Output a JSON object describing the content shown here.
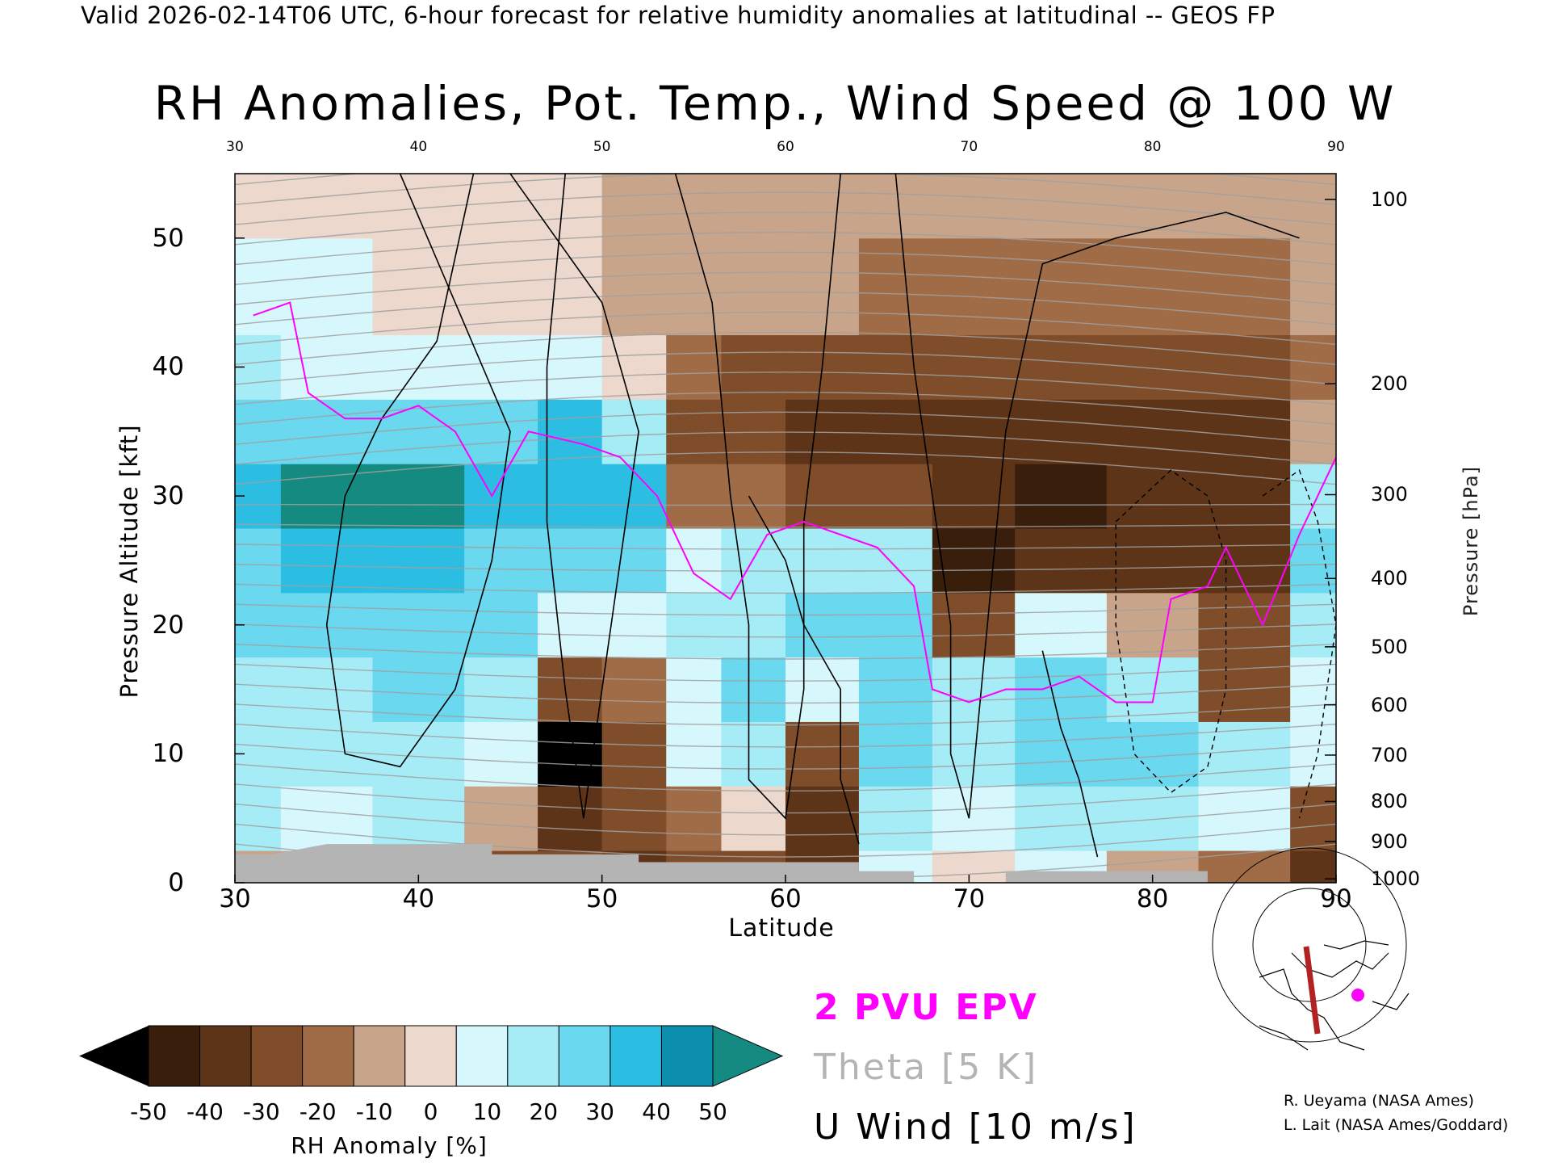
{
  "header": "Valid 2026-02-14T06 UTC, 6-hour forecast for relative humidity anomalies at latitudinal -- GEOS FP",
  "title": "RH Anomalies, Pot. Temp., Wind Speed @ 100 W",
  "chart_data": {
    "type": "heatmap",
    "title": "RH Anomalies, Pot. Temp., Wind Speed @ 100 W",
    "xlabel": "Latitude",
    "ylabel": "Pressure Altitude [kft]",
    "y2label": "Pressure [hPa]",
    "xlim": [
      30,
      90
    ],
    "ylim": [
      0,
      55
    ],
    "x_ticks": [
      30,
      40,
      50,
      60,
      70,
      80,
      90
    ],
    "x_top_ticks": [
      30,
      40,
      50,
      60,
      70,
      80,
      90
    ],
    "y_ticks": [
      0,
      10,
      20,
      30,
      40,
      50
    ],
    "pressure_ticks": [
      {
        "label": "100",
        "kft": 53
      },
      {
        "label": "200",
        "kft": 38.7
      },
      {
        "label": "300",
        "kft": 30.1
      },
      {
        "label": "400",
        "kft": 23.6
      },
      {
        "label": "500",
        "kft": 18.3
      },
      {
        "label": "600",
        "kft": 13.8
      },
      {
        "label": "700",
        "kft": 9.9
      },
      {
        "label": "800",
        "kft": 6.3
      },
      {
        "label": "900",
        "kft": 3.2
      },
      {
        "label": "1000",
        "kft": 0.3
      }
    ],
    "colorbar": {
      "label": "RH Anomaly [%]",
      "ticks": [
        "-50",
        "-40",
        "-30",
        "-20",
        "-10",
        "0",
        "10",
        "20",
        "30",
        "40",
        "50"
      ],
      "colors": [
        "#3a1e0c",
        "#5e3418",
        "#7f4d2a",
        "#a06c48",
        "#c8a48a",
        "#ecd8cc",
        "#d6f7fb",
        "#a6ecf6",
        "#6ad8ee",
        "#2cbee2",
        "#0c8eaf"
      ],
      "under_color": "#000000",
      "over_color": "#148a80"
    },
    "rh_anomaly_columns": [
      {
        "lat": 30,
        "values": [
          -10,
          20,
          25,
          25,
          30,
          35,
          40,
          30,
          20,
          10,
          0
        ]
      },
      {
        "lat": 35,
        "values": [
          -5,
          15,
          20,
          25,
          30,
          40,
          50,
          30,
          15,
          10,
          0
        ]
      },
      {
        "lat": 40,
        "values": [
          -20,
          20,
          25,
          30,
          35,
          40,
          55,
          35,
          15,
          5,
          0
        ]
      },
      {
        "lat": 45,
        "values": [
          -30,
          -10,
          10,
          20,
          30,
          35,
          40,
          30,
          10,
          5,
          0
        ]
      },
      {
        "lat": 48,
        "values": [
          -30,
          -40,
          -60,
          -30,
          10,
          30,
          45,
          40,
          10,
          5,
          0
        ]
      },
      {
        "lat": 52,
        "values": [
          -40,
          -30,
          -25,
          -20,
          15,
          30,
          40,
          20,
          0,
          -5,
          -5
        ]
      },
      {
        "lat": 55,
        "values": [
          -30,
          -20,
          10,
          15,
          20,
          10,
          -20,
          -25,
          -15,
          -10,
          -5
        ]
      },
      {
        "lat": 58,
        "values": [
          -30,
          0,
          20,
          30,
          25,
          20,
          -20,
          -30,
          -25,
          -10,
          -5
        ]
      },
      {
        "lat": 62,
        "values": [
          -40,
          -40,
          -30,
          10,
          30,
          25,
          -25,
          -35,
          -25,
          -10,
          -5
        ]
      },
      {
        "lat": 66,
        "values": [
          10,
          20,
          30,
          30,
          30,
          25,
          -30,
          -40,
          -30,
          -15,
          -5
        ]
      },
      {
        "lat": 70,
        "values": [
          0,
          10,
          20,
          25,
          -30,
          -50,
          -40,
          -40,
          -30,
          -15,
          -5
        ]
      },
      {
        "lat": 75,
        "values": [
          10,
          20,
          30,
          30,
          10,
          -40,
          -45,
          -40,
          -30,
          -15,
          -5
        ]
      },
      {
        "lat": 80,
        "values": [
          -10,
          20,
          30,
          20,
          -5,
          -35,
          -40,
          -40,
          -30,
          -15,
          -5
        ]
      },
      {
        "lat": 85,
        "values": [
          -20,
          10,
          20,
          -30,
          -30,
          -35,
          -40,
          -40,
          -30,
          -15,
          -5
        ]
      },
      {
        "lat": 90,
        "values": [
          -40,
          -30,
          10,
          15,
          25,
          30,
          20,
          -10,
          -20,
          -10,
          -5
        ]
      }
    ],
    "rh_anomaly_levels_kft": [
      0,
      5,
      10,
      15,
      20,
      25,
      30,
      35,
      40,
      45,
      55
    ],
    "theta_contour_interval_K": 5,
    "u_wind_contour_interval_ms": 10,
    "epv_contour": "2 PVU",
    "legend": [
      "2 PVU EPV",
      "Theta [5 K]",
      "U Wind [10 m/s]"
    ]
  },
  "legend": {
    "epv": "2 PVU EPV",
    "theta": "Theta [5 K]",
    "wind": "U Wind [10 m/s]"
  },
  "credits": {
    "line1": "R. Ueyama (NASA Ames)",
    "line2": "L. Lait (NASA Ames/Goddard)"
  },
  "colors": {
    "epv": "#ff00ff",
    "theta": "#a0a0a0",
    "wind": "#000000",
    "terrain": "#b4b4b4",
    "section_line": "#b22222"
  }
}
